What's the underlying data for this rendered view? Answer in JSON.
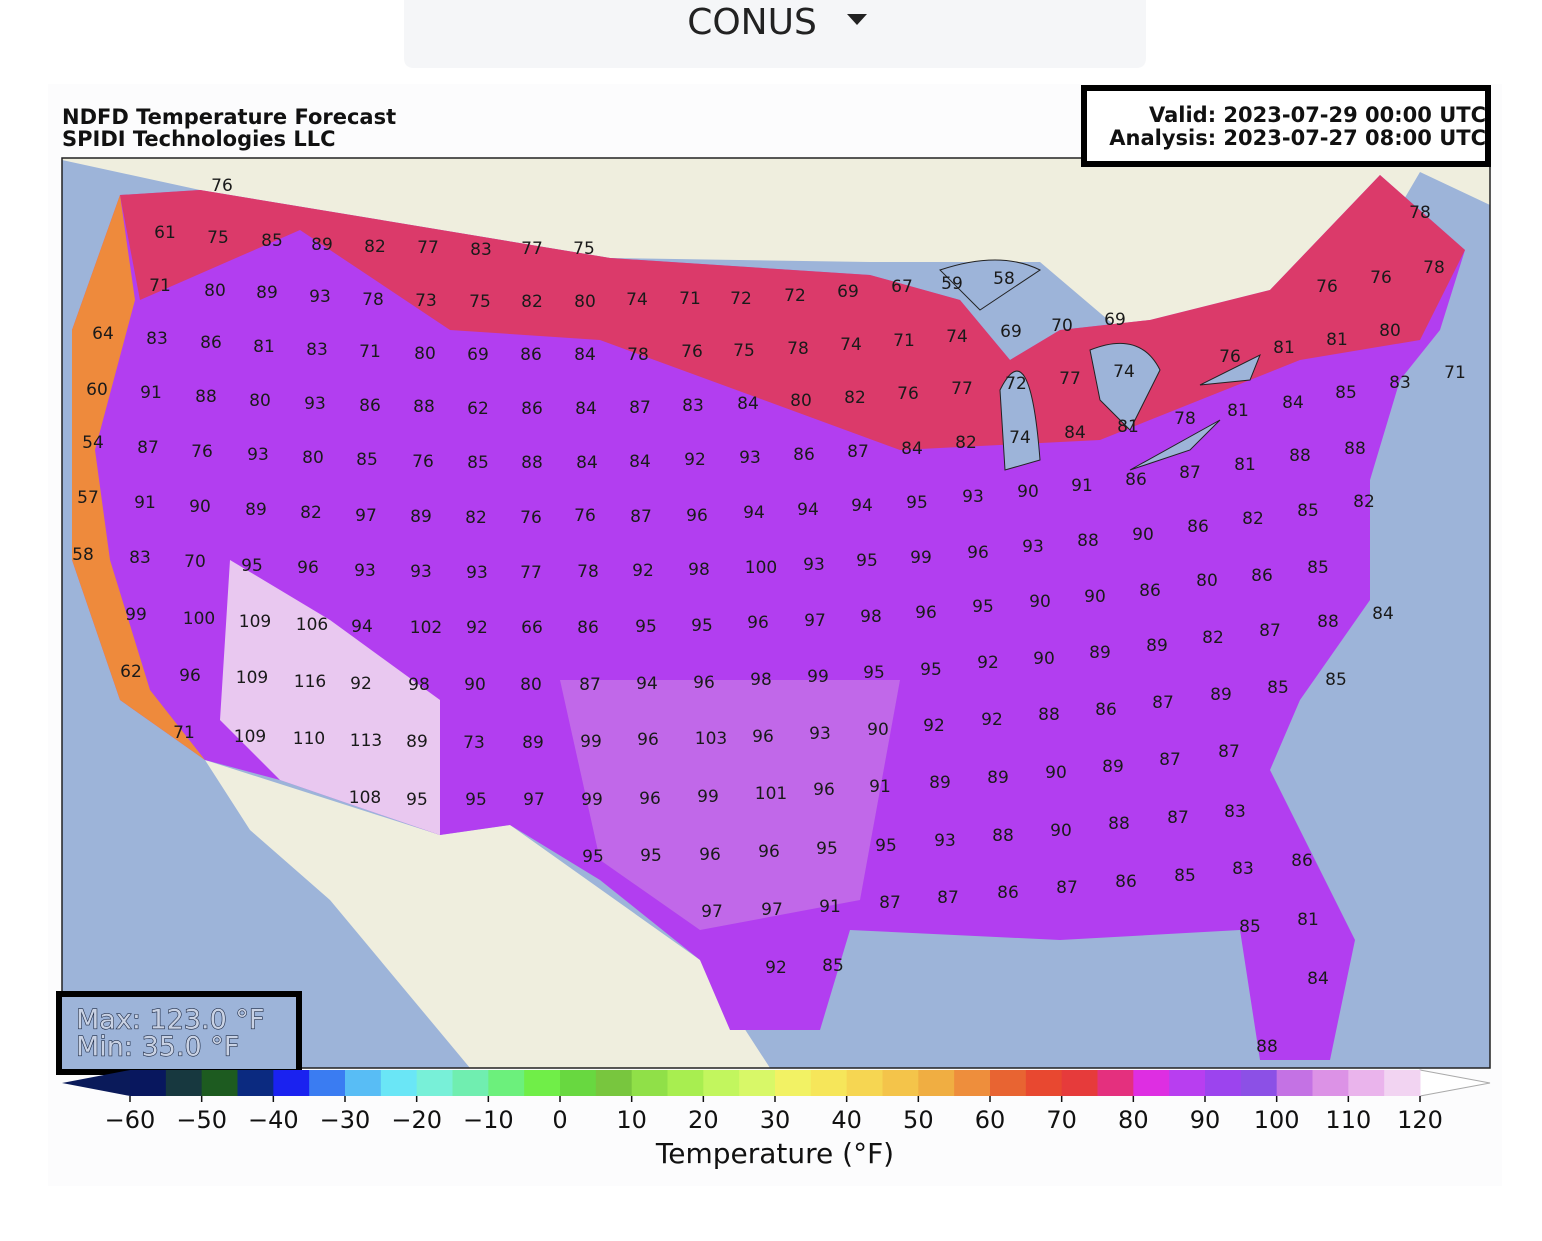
{
  "header": {
    "region": "CONUS"
  },
  "map": {
    "title": "NDFD Temperature Forecast",
    "subtitle": "SPIDI Technologies LLC",
    "valid": "Valid: 2023-07-29 00:00 UTC",
    "analysis": "Analysis: 2023-07-27 08:00 UTC",
    "max": "Max: 123.0 °F",
    "min": "Min: 35.0 °F",
    "station_rows": [
      [
        76
      ],
      [
        61,
        75,
        85,
        89,
        82,
        77,
        83,
        77,
        75
      ],
      [
        71,
        80,
        89,
        93,
        78,
        73,
        75,
        82,
        80,
        74,
        71,
        72,
        72,
        69,
        67,
        59,
        58
      ],
      [
        64,
        83,
        86,
        81,
        83,
        71,
        80,
        69,
        86,
        84,
        78,
        76,
        75,
        78,
        74,
        71,
        74,
        69,
        70,
        69
      ],
      [
        60,
        91,
        88,
        80,
        93,
        86,
        88,
        62,
        86,
        84,
        87,
        83,
        84,
        80,
        82,
        76,
        77,
        72,
        77,
        74,
        76,
        81,
        81,
        80,
        76,
        76,
        78,
        78,
        71,
        83,
        85,
        84,
        81,
        78
      ],
      [
        54,
        87,
        76,
        93,
        80,
        85,
        76,
        85,
        88,
        84,
        84,
        92,
        93,
        86,
        87,
        84,
        82,
        74,
        84,
        81,
        88,
        88,
        81,
        87,
        86,
        91,
        90,
        93
      ],
      [
        57,
        91,
        90,
        89,
        82,
        97,
        89,
        82,
        76,
        76,
        87,
        96,
        94,
        94,
        94,
        95,
        86,
        82,
        85,
        82,
        90,
        88,
        93,
        96,
        99
      ],
      [
        58,
        83,
        70,
        95,
        96,
        93,
        93,
        93,
        77,
        78,
        92,
        98,
        100,
        93,
        95,
        80,
        86,
        85,
        86,
        90,
        90,
        95
      ],
      [
        99,
        100,
        109,
        106,
        94,
        102,
        92,
        66,
        86,
        95,
        95,
        96,
        97,
        98,
        96,
        84,
        88,
        87,
        82,
        89,
        89,
        90,
        92
      ],
      [
        62,
        96,
        109,
        116,
        92,
        98,
        90,
        80,
        87,
        94,
        96,
        98,
        99,
        95,
        95,
        85,
        85,
        89,
        87,
        86,
        88,
        92
      ],
      [
        71,
        109,
        110,
        113,
        89,
        73,
        89,
        99,
        96,
        103,
        96,
        93,
        90,
        92,
        87,
        87,
        89,
        90,
        89,
        89,
        91
      ],
      [
        108,
        95,
        95,
        97,
        99,
        96,
        99,
        101,
        96,
        83,
        87,
        88,
        90,
        88,
        93,
        95
      ],
      [
        95,
        95,
        96,
        96,
        95,
        86,
        83,
        85,
        86,
        87,
        86,
        87,
        87,
        91
      ],
      [
        97,
        97,
        81,
        85,
        92,
        85,
        84,
        88
      ]
    ]
  },
  "colorbar": {
    "label": "Temperature (°F)",
    "xlim": [
      -60,
      120
    ],
    "xticks": [
      {
        "value": -60,
        "label": "−60"
      },
      {
        "value": -50,
        "label": "−50"
      },
      {
        "value": -40,
        "label": "−40"
      },
      {
        "value": -30,
        "label": "−30"
      },
      {
        "value": -20,
        "label": "−20"
      },
      {
        "value": -10,
        "label": "−10"
      },
      0,
      10,
      20,
      30,
      40,
      50,
      60,
      70,
      80,
      90,
      100,
      110,
      120
    ],
    "under_color": "#0a1a5a",
    "over_color": "#ffffff",
    "colors": [
      "#08175e",
      "#17383f",
      "#1d5b20",
      "#0b2a80",
      "#1a22f0",
      "#3a7cf2",
      "#58bdf5",
      "#6ae6f6",
      "#78f0d8",
      "#70eeb0",
      "#6cf07c",
      "#70ee48",
      "#68d840",
      "#78c63e",
      "#90e048",
      "#a8ee50",
      "#c2f65e",
      "#d8f868",
      "#f2f264",
      "#f6e65a",
      "#f6d652",
      "#f4c44a",
      "#f0ae42",
      "#ee8e3c",
      "#e86432",
      "#e84830",
      "#e63b3b",
      "#e4307e",
      "#de2ee2",
      "#b83ef0",
      "#9c44ee",
      "#8c50e6",
      "#c472e4",
      "#dc92e6",
      "#eab4ec",
      "#f2d4f2"
    ]
  }
}
